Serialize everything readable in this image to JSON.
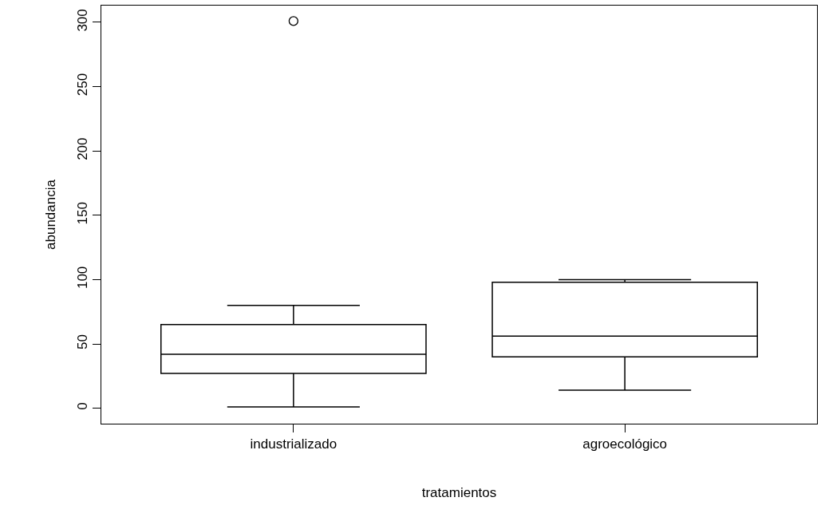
{
  "chart_data": {
    "type": "box",
    "xlabel": "tratamientos",
    "ylabel": "abundancia",
    "categories": [
      "industrializado",
      "agroecológico"
    ],
    "boxes": [
      {
        "low": 1,
        "q1": 27,
        "median": 42,
        "q3": 65,
        "high": 80,
        "outliers": [
          301
        ]
      },
      {
        "low": 14,
        "q1": 40,
        "median": 56,
        "q3": 98,
        "high": 100
      }
    ],
    "color": "#000000",
    "ylim": [
      -12,
      313
    ],
    "yticks": [
      0,
      50,
      100,
      150,
      200,
      250,
      300
    ],
    "grid": false
  }
}
